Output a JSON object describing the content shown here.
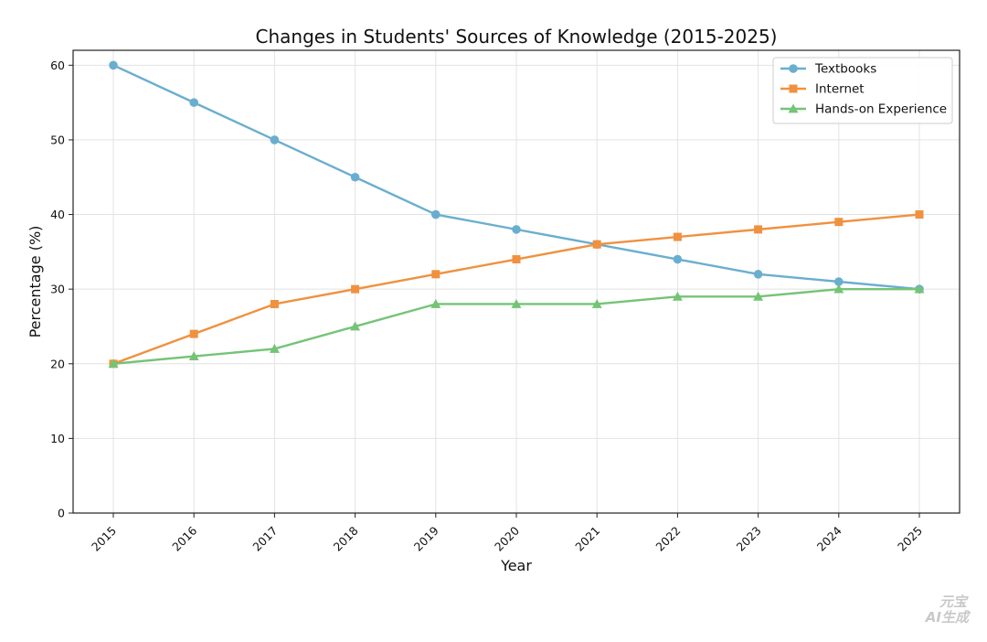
{
  "chart_data": {
    "type": "line",
    "title": "Changes in Students' Sources of Knowledge (2015-2025)",
    "xlabel": "Year",
    "ylabel": "Percentage (%)",
    "x": [
      "2015",
      "2016",
      "2017",
      "2018",
      "2019",
      "2020",
      "2021",
      "2022",
      "2023",
      "2024",
      "2025"
    ],
    "ylim": [
      0,
      62
    ],
    "yticks": [
      0,
      10,
      20,
      30,
      40,
      50,
      60
    ],
    "grid": true,
    "legend_position": "top-right",
    "series": [
      {
        "name": "Textbooks",
        "color": "#6aaecf",
        "marker": "circle",
        "values": [
          60,
          55,
          50,
          45,
          40,
          38,
          36,
          34,
          32,
          31,
          30
        ]
      },
      {
        "name": "Internet",
        "color": "#f0913f",
        "marker": "square",
        "values": [
          20,
          24,
          28,
          30,
          32,
          34,
          36,
          37,
          38,
          39,
          40
        ]
      },
      {
        "name": "Hands-on Experience",
        "color": "#74c476",
        "marker": "triangle",
        "values": [
          20,
          21,
          22,
          25,
          28,
          28,
          28,
          29,
          29,
          30,
          30
        ]
      }
    ]
  },
  "watermark": {
    "line1": "元宝",
    "line2": "AI生成"
  }
}
